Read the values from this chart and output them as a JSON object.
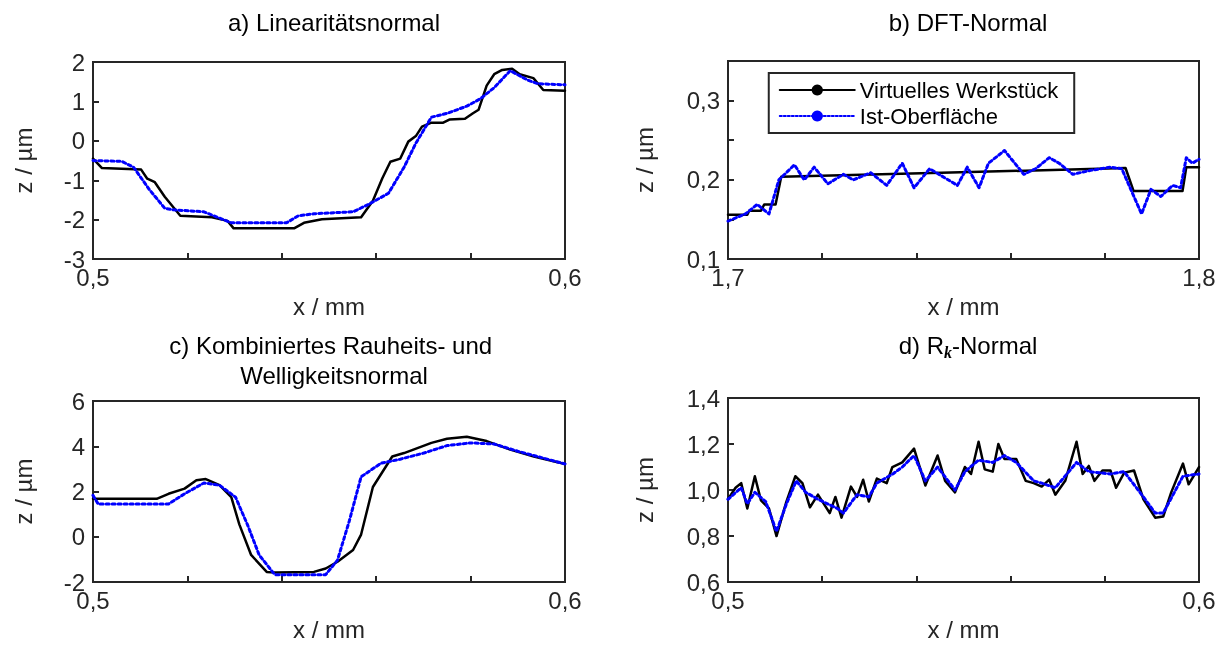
{
  "chart_data": [
    {
      "type": "line",
      "title": "a) Linearitätsnormal",
      "xlabel": "x / mm",
      "ylabel": "z / µm",
      "xlim": [
        0.5,
        0.6
      ],
      "xticks": [
        {
          "value": 0.5,
          "label": "0,5"
        },
        {
          "value": 0.52,
          "label": null
        },
        {
          "value": 0.54,
          "label": null
        },
        {
          "value": 0.56,
          "label": null
        },
        {
          "value": 0.58,
          "label": null
        },
        {
          "value": 0.6,
          "label": "0,6"
        }
      ],
      "ylim": [
        -3,
        2
      ],
      "yticks": [
        -3,
        -2,
        -1,
        0,
        1,
        2
      ],
      "series": [
        {
          "color": "#000000",
          "line_style": "solid",
          "x": [
            0.5,
            0.5019,
            0.5102,
            0.5115,
            0.5131,
            0.5152,
            0.5185,
            0.5252,
            0.5285,
            0.5298,
            0.5426,
            0.5447,
            0.5485,
            0.5568,
            0.5593,
            0.5613,
            0.563,
            0.5651,
            0.5668,
            0.5684,
            0.5697,
            0.5717,
            0.5742,
            0.5755,
            0.5788,
            0.5805,
            0.5817,
            0.5834,
            0.585,
            0.5867,
            0.5888,
            0.5904,
            0.5933,
            0.5954,
            0.6
          ],
          "values": [
            -0.45,
            -0.69,
            -0.73,
            -0.96,
            -1.05,
            -1.42,
            -1.9,
            -1.94,
            -2.03,
            -2.22,
            -2.22,
            -2.08,
            -1.99,
            -1.94,
            -1.52,
            -0.95,
            -0.53,
            -0.45,
            -0.02,
            0.12,
            0.36,
            0.46,
            0.46,
            0.54,
            0.56,
            0.7,
            0.79,
            1.4,
            1.69,
            1.8,
            1.83,
            1.69,
            1.59,
            1.29,
            1.27
          ]
        },
        {
          "color": "#0000ff",
          "line_style": "dotted",
          "x": [
            0.5,
            0.5061,
            0.5086,
            0.5119,
            0.5152,
            0.5169,
            0.5235,
            0.5293,
            0.541,
            0.5435,
            0.5468,
            0.5551,
            0.5584,
            0.5626,
            0.5659,
            0.5684,
            0.5717,
            0.5751,
            0.5792,
            0.5821,
            0.585,
            0.5884,
            0.5921,
            0.5942,
            0.6
          ],
          "values": [
            -0.5,
            -0.52,
            -0.67,
            -1.23,
            -1.71,
            -1.75,
            -1.8,
            -2.08,
            -2.08,
            -1.9,
            -1.85,
            -1.8,
            -1.61,
            -1.33,
            -0.67,
            -0.06,
            0.6,
            0.7,
            0.88,
            1.07,
            1.35,
            1.78,
            1.54,
            1.45,
            1.42
          ]
        }
      ]
    },
    {
      "type": "line",
      "title": "b) DFT-Normal",
      "xlabel": "x / mm",
      "ylabel": "z / µm",
      "xlim": [
        1.7,
        1.8
      ],
      "xticks": [
        {
          "value": 1.7,
          "label": "1,7"
        },
        {
          "value": 1.72,
          "label": null
        },
        {
          "value": 1.74,
          "label": null
        },
        {
          "value": 1.76,
          "label": null
        },
        {
          "value": 1.78,
          "label": null
        },
        {
          "value": 1.8,
          "label": "1,8"
        }
      ],
      "ylim": [
        0.1,
        0.35
      ],
      "yticks": [
        {
          "value": 0.1,
          "label": "0,1"
        },
        {
          "value": 0.15,
          "label": null
        },
        {
          "value": 0.2,
          "label": "0,2"
        },
        {
          "value": 0.25,
          "label": null
        },
        {
          "value": 0.3,
          "label": "0,3"
        }
      ],
      "legend": "top",
      "series": [
        {
          "name": "Virtuelles Werkstück",
          "color": "#000000",
          "line_style": "solid",
          "x": [
            1.7,
            1.7041,
            1.7045,
            1.707,
            1.7077,
            1.7101,
            1.7113,
            1.7453,
            1.7728,
            1.7844,
            1.7861,
            1.7965,
            1.7973,
            1.8
          ],
          "values": [
            0.156,
            0.156,
            0.161,
            0.161,
            0.169,
            0.169,
            0.204,
            0.209,
            0.213,
            0.215,
            0.186,
            0.186,
            0.216,
            0.216
          ]
        },
        {
          "name": "Ist-Oberfläche",
          "color": "#0000ff",
          "line_style": "dotted",
          "x": [
            1.7,
            1.7037,
            1.7062,
            1.7087,
            1.7108,
            1.7141,
            1.7162,
            1.7183,
            1.7212,
            1.7245,
            1.7266,
            1.7303,
            1.7337,
            1.737,
            1.7395,
            1.7428,
            1.7462,
            1.7487,
            1.7508,
            1.7533,
            1.7553,
            1.7587,
            1.7628,
            1.7653,
            1.7682,
            1.7703,
            1.7732,
            1.777,
            1.7811,
            1.7836,
            1.7878,
            1.7898,
            1.7919,
            1.7944,
            1.7961,
            1.7973,
            1.7986,
            1.8
          ],
          "values": [
            0.148,
            0.157,
            0.169,
            0.157,
            0.2,
            0.219,
            0.2,
            0.216,
            0.195,
            0.207,
            0.2,
            0.209,
            0.193,
            0.221,
            0.19,
            0.214,
            0.202,
            0.193,
            0.216,
            0.19,
            0.221,
            0.237,
            0.207,
            0.214,
            0.228,
            0.221,
            0.207,
            0.212,
            0.216,
            0.214,
            0.157,
            0.188,
            0.179,
            0.193,
            0.19,
            0.228,
            0.221,
            0.226
          ]
        }
      ]
    },
    {
      "type": "line",
      "title": "c) Kombiniertes Rauheits- und Welligkeitsnormal",
      "xlabel": "x / mm",
      "ylabel": "z / µm",
      "xlim": [
        0.5,
        0.6
      ],
      "xticks": [
        {
          "value": 0.5,
          "label": "0,5"
        },
        {
          "value": 0.52,
          "label": null
        },
        {
          "value": 0.54,
          "label": null
        },
        {
          "value": 0.56,
          "label": null
        },
        {
          "value": 0.58,
          "label": null
        },
        {
          "value": 0.6,
          "label": "0,6"
        }
      ],
      "ylim": [
        -2,
        6
      ],
      "yticks": [
        -2,
        0,
        2,
        4,
        6
      ],
      "series": [
        {
          "color": "#000000",
          "line_style": "solid",
          "x": [
            0.5,
            0.5135,
            0.516,
            0.5194,
            0.5219,
            0.5239,
            0.5268,
            0.5293,
            0.531,
            0.5335,
            0.5368,
            0.5385,
            0.5468,
            0.5493,
            0.5518,
            0.5551,
            0.5568,
            0.5593,
            0.5634,
            0.5659,
            0.5717,
            0.575,
            0.5792,
            0.5834,
            0.5884,
            0.5934,
            0.6
          ],
          "values": [
            1.68,
            1.68,
            1.9,
            2.13,
            2.5,
            2.55,
            2.28,
            1.75,
            0.55,
            -0.8,
            -1.55,
            -1.58,
            -1.55,
            -1.4,
            -1.1,
            -0.58,
            0.1,
            2.2,
            3.55,
            3.7,
            4.15,
            4.33,
            4.42,
            4.23,
            3.85,
            3.55,
            3.22
          ]
        },
        {
          "color": "#0000ff",
          "line_style": "dotted",
          "x": [
            0.5,
            0.5011,
            0.516,
            0.5194,
            0.5235,
            0.5268,
            0.5302,
            0.5327,
            0.5352,
            0.5385,
            0.5493,
            0.5518,
            0.5543,
            0.5568,
            0.561,
            0.5651,
            0.5701,
            0.575,
            0.58,
            0.585,
            0.59,
            0.6
          ],
          "values": [
            1.83,
            1.45,
            1.45,
            1.9,
            2.38,
            2.28,
            1.75,
            0.55,
            -0.8,
            -1.67,
            -1.67,
            -1.03,
            0.7,
            2.65,
            3.25,
            3.43,
            3.7,
            4.03,
            4.15,
            4.1,
            3.78,
            3.22
          ]
        }
      ]
    },
    {
      "type": "line",
      "title": "d) R$_{k}$-Normal",
      "xlabel": "x / mm",
      "ylabel": "z / µm",
      "xlim": [
        0.5,
        0.6
      ],
      "xticks": [
        {
          "value": 0.5,
          "label": "0,5"
        },
        {
          "value": 0.52,
          "label": null
        },
        {
          "value": 0.54,
          "label": null
        },
        {
          "value": 0.56,
          "label": null
        },
        {
          "value": 0.58,
          "label": null
        },
        {
          "value": 0.6,
          "label": "0,6"
        }
      ],
      "ylim": [
        0.6,
        1.4
      ],
      "yticks": [
        {
          "value": 0.6,
          "label": "0,6"
        },
        {
          "value": 0.8,
          "label": "0,8"
        },
        {
          "value": 1.0,
          "label": "1,0"
        },
        {
          "value": 1.2,
          "label": "1,2"
        },
        {
          "value": 1.4,
          "label": "1,4"
        }
      ],
      "series": [
        {
          "color": "#000000",
          "line_style": "solid",
          "x": [
            0.5,
            0.5016,
            0.5028,
            0.5041,
            0.5057,
            0.507,
            0.5087,
            0.5103,
            0.5124,
            0.5143,
            0.5158,
            0.5174,
            0.5191,
            0.5216,
            0.5228,
            0.5241,
            0.5261,
            0.5274,
            0.5287,
            0.5299,
            0.5316,
            0.5337,
            0.5349,
            0.537,
            0.5395,
            0.5419,
            0.5445,
            0.5461,
            0.5482,
            0.5503,
            0.5516,
            0.5532,
            0.5545,
            0.5562,
            0.5574,
            0.5587,
            0.5612,
            0.5632,
            0.5649,
            0.5666,
            0.5682,
            0.5695,
            0.5716,
            0.574,
            0.5753,
            0.5766,
            0.5778,
            0.5795,
            0.5812,
            0.5824,
            0.5841,
            0.5862,
            0.5882,
            0.5907,
            0.5924,
            0.5941,
            0.5966,
            0.5978,
            0.6
          ],
          "values": [
            0.96,
            1.01,
            1.03,
            0.92,
            1.06,
            0.955,
            0.92,
            0.8,
            0.95,
            1.06,
            1.03,
            0.925,
            0.98,
            0.9,
            0.97,
            0.88,
            1.015,
            0.97,
            1.045,
            0.95,
            1.05,
            1.03,
            1.1,
            1.12,
            1.18,
            1.02,
            1.15,
            1.04,
            0.99,
            1.1,
            1.07,
            1.21,
            1.09,
            1.08,
            1.2,
            1.135,
            1.135,
            1.04,
            1.03,
            1.015,
            1.045,
            0.98,
            1.04,
            1.21,
            1.07,
            1.105,
            1.04,
            1.085,
            1.085,
            1.01,
            1.075,
            1.085,
            0.96,
            0.88,
            0.885,
            0.99,
            1.115,
            1.025,
            1.1
          ]
        },
        {
          "color": "#0000ff",
          "line_style": "dotted",
          "x": [
            0.5,
            0.5028,
            0.5041,
            0.5057,
            0.508,
            0.5103,
            0.5124,
            0.5145,
            0.5165,
            0.5191,
            0.5232,
            0.5245,
            0.5274,
            0.5299,
            0.5316,
            0.535,
            0.537,
            0.5395,
            0.5419,
            0.5445,
            0.5482,
            0.5503,
            0.5532,
            0.5562,
            0.5587,
            0.5612,
            0.5649,
            0.5666,
            0.5695,
            0.574,
            0.5766,
            0.5812,
            0.5841,
            0.5882,
            0.5907,
            0.5924,
            0.5966,
            0.6
          ],
          "values": [
            0.96,
            1.01,
            0.94,
            0.99,
            0.95,
            0.82,
            0.94,
            1.04,
            0.99,
            0.96,
            0.92,
            0.9,
            0.98,
            0.97,
            1.03,
            1.07,
            1.1,
            1.15,
            1.04,
            1.1,
            1.0,
            1.08,
            1.13,
            1.12,
            1.15,
            1.12,
            1.04,
            1.03,
            1.01,
            1.12,
            1.08,
            1.07,
            1.08,
            0.97,
            0.9,
            0.9,
            1.06,
            1.07
          ]
        }
      ]
    }
  ]
}
